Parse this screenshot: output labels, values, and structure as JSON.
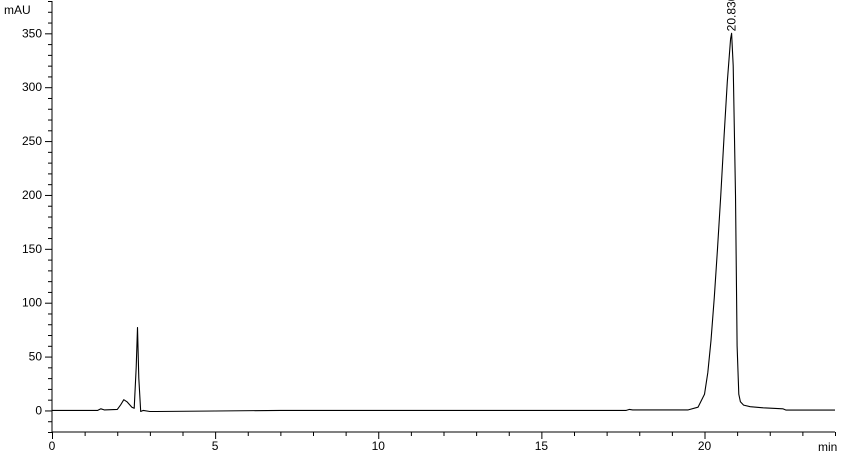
{
  "chart_data": {
    "type": "line",
    "ylabel": "mAU",
    "xlabel": "min",
    "xlim": [
      0,
      24
    ],
    "ylim": [
      -20,
      380
    ],
    "x_ticks": [
      0,
      5,
      10,
      15,
      20
    ],
    "y_ticks": [
      0,
      50,
      100,
      150,
      200,
      250,
      300,
      350
    ],
    "x_minor_step": 1,
    "y_minor_step": 10,
    "grid": false,
    "line_color": "#000000",
    "peak_labels": [
      {
        "x": 20.83,
        "y": 350,
        "text": "20.830"
      }
    ],
    "series": [
      {
        "x": [
          0,
          1.4,
          1.5,
          1.6,
          2.0,
          2.1,
          2.2,
          2.3,
          2.45,
          2.52,
          2.58,
          2.62,
          2.66,
          2.72,
          2.8,
          3.0,
          3.2,
          5.0,
          7.0,
          10.0,
          15.0,
          17.6,
          17.7,
          17.8,
          19.5,
          19.8,
          20.0,
          20.1,
          20.2,
          20.3,
          20.4,
          20.5,
          20.6,
          20.7,
          20.8,
          20.83,
          20.88,
          20.95,
          21.0,
          21.05,
          21.1,
          21.2,
          21.4,
          21.8,
          22.4,
          22.5,
          24.0
        ],
        "y": [
          0,
          0,
          1.5,
          0.5,
          1,
          5,
          10,
          8,
          3,
          2,
          40,
          77,
          30,
          -1,
          0,
          -1,
          -1,
          -0.5,
          0,
          0,
          0,
          0,
          1,
          0.5,
          0.5,
          3,
          15,
          35,
          65,
          105,
          150,
          200,
          255,
          305,
          345,
          350,
          320,
          200,
          60,
          15,
          8,
          5,
          3.5,
          2.5,
          1.5,
          0.3,
          0.3
        ]
      }
    ]
  }
}
